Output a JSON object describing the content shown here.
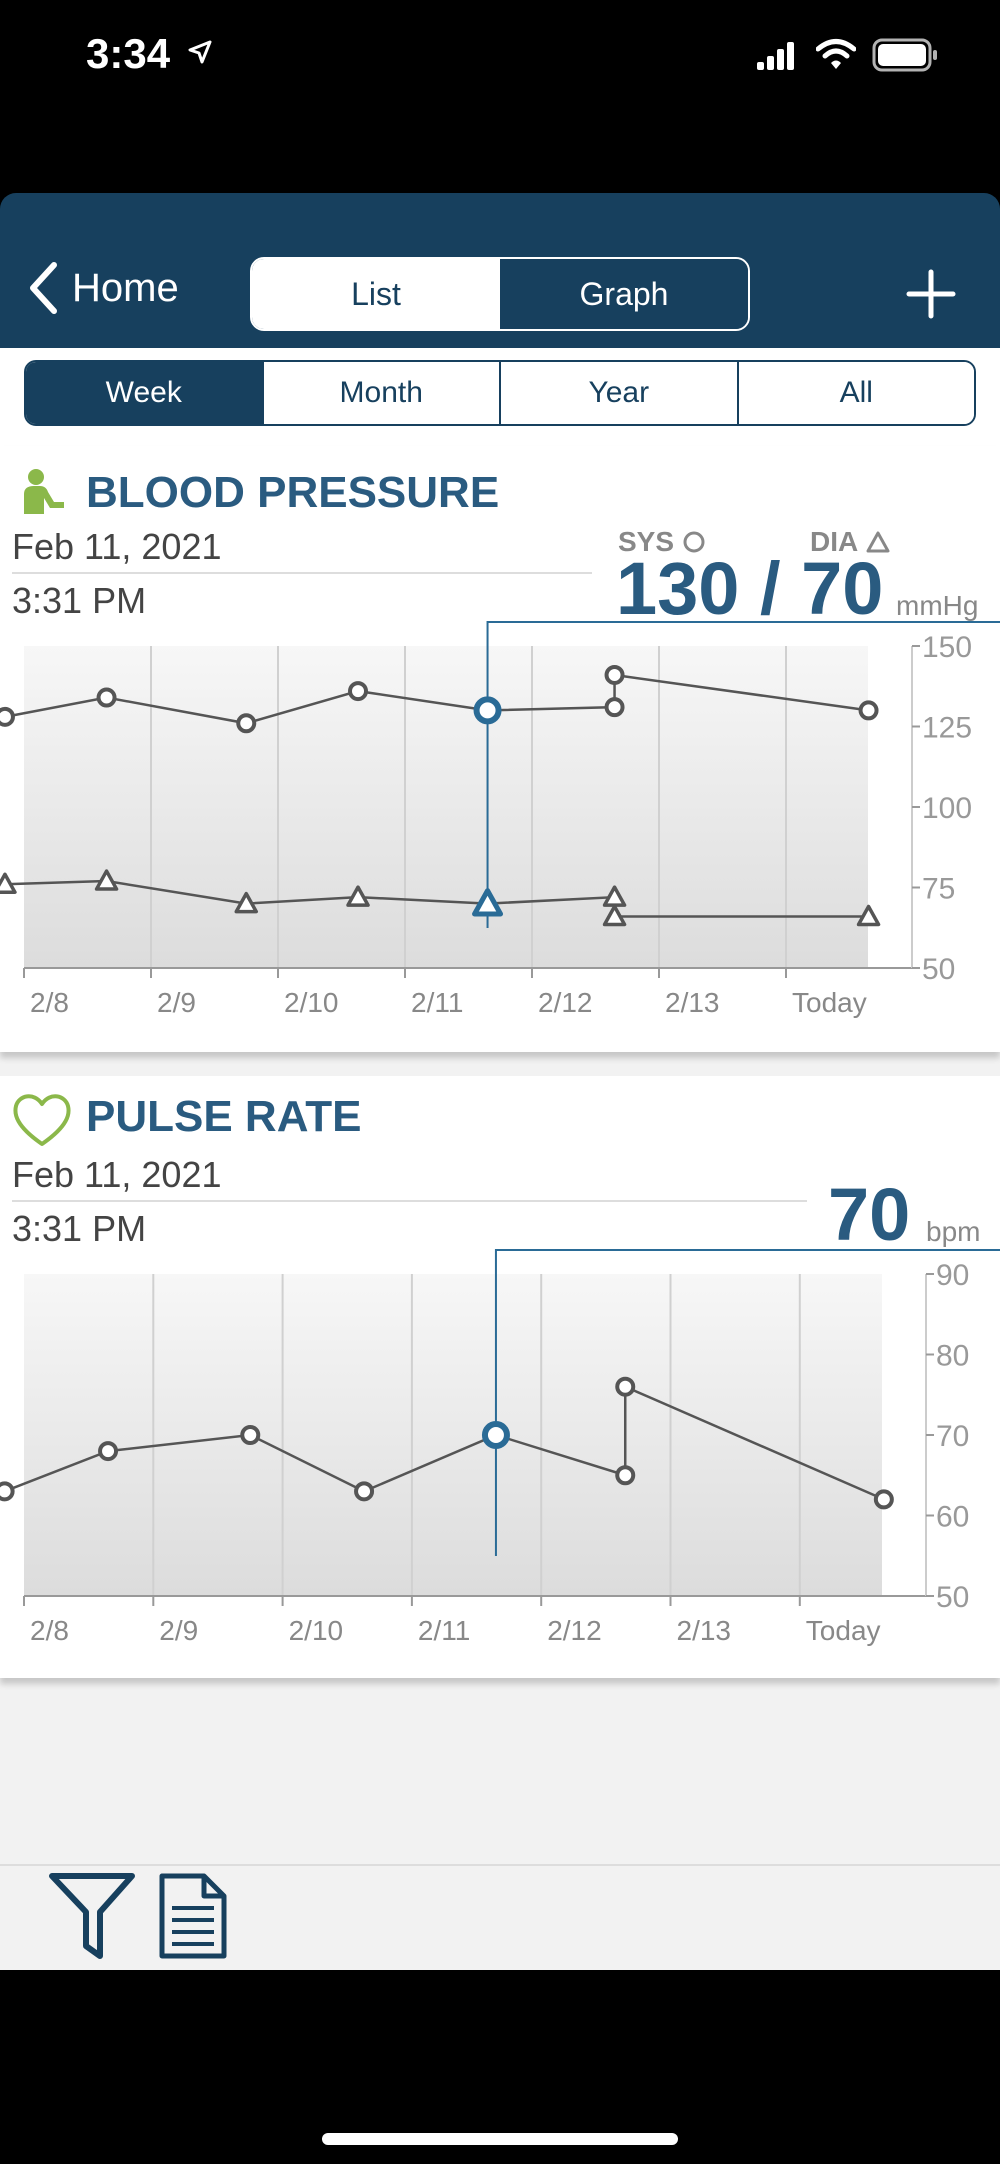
{
  "status_bar": {
    "time": "3:34"
  },
  "nav": {
    "back_label": "Home",
    "view_tabs": [
      {
        "label": "List",
        "active": true
      },
      {
        "label": "Graph",
        "active": false
      }
    ]
  },
  "range_tabs": [
    {
      "label": "Week",
      "active": true
    },
    {
      "label": "Month",
      "active": false
    },
    {
      "label": "Year",
      "active": false
    },
    {
      "label": "All",
      "active": false
    }
  ],
  "blood_pressure": {
    "title": "BLOOD PRESSURE",
    "date": "Feb 11, 2021",
    "time": "3:31 PM",
    "sys_label": "SYS",
    "dia_label": "DIA",
    "reading": "130 / 70",
    "unit": "mmHg"
  },
  "pulse_rate": {
    "title": "PULSE RATE",
    "date": "Feb 11, 2021",
    "time": "3:31 PM",
    "reading": "70",
    "unit": "bpm"
  },
  "colors": {
    "brand": "#17405e",
    "accent": "#2a5b80",
    "heart": "#8bb84a",
    "line": "#555555"
  },
  "chart_data": [
    {
      "type": "line",
      "xticks": [
        "2/8",
        "2/9",
        "2/10",
        "2/11",
        "2/12",
        "2/13",
        "Today"
      ],
      "ylim": [
        50,
        150
      ],
      "yticks": [
        150,
        125,
        100,
        75,
        50
      ],
      "selected_index": 4,
      "series": [
        {
          "name": "SYS",
          "marker": "circle",
          "x": [
            -0.15,
            0.65,
            1.75,
            2.63,
            3.65,
            4.65,
            4.65,
            6.65
          ],
          "values": [
            128,
            134,
            126,
            136,
            130,
            131,
            141,
            130
          ]
        },
        {
          "name": "DIA",
          "marker": "triangle",
          "x": [
            -0.15,
            0.65,
            1.75,
            2.63,
            3.65,
            4.65,
            4.65,
            6.65
          ],
          "values": [
            76,
            77,
            70,
            72,
            70,
            72,
            66,
            66
          ]
        }
      ]
    },
    {
      "type": "line",
      "xticks": [
        "2/8",
        "2/9",
        "2/10",
        "2/11",
        "2/12",
        "2/13",
        "Today"
      ],
      "ylim": [
        50,
        90
      ],
      "yticks": [
        90,
        80,
        70,
        60,
        50
      ],
      "selected_index": 4,
      "series": [
        {
          "marker": "circle",
          "x": [
            -0.15,
            0.65,
            1.75,
            2.63,
            3.65,
            4.65,
            4.65,
            6.65
          ],
          "values": [
            63,
            68,
            70,
            63,
            70,
            65,
            76,
            62
          ]
        }
      ]
    }
  ]
}
